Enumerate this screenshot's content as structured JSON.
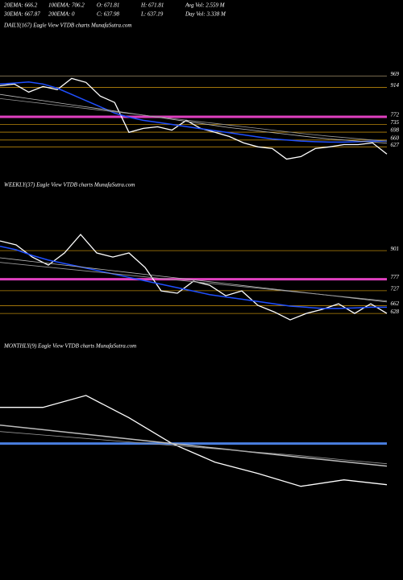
{
  "header": {
    "rows": [
      [
        "20EMA: 666.2",
        "100EMA: 706.2",
        "O: 671.81",
        "H: 671.81",
        "Avg Vol: 2.559 M"
      ],
      [
        "30EMA: 667.87",
        "200EMA: 0",
        "C: 637.98",
        "L: 637.19",
        "Day Vol: 3.338 M"
      ]
    ]
  },
  "chart_data": [
    {
      "type": "line",
      "title": "DAILY(167) Eagle View VTDB charts MunafaSutra.com",
      "categories": [
        null,
        null,
        null,
        null,
        null,
        null,
        null,
        null,
        null,
        null,
        null,
        null,
        null,
        null,
        null,
        null,
        null,
        null,
        null,
        null,
        null,
        null,
        null,
        null,
        null,
        null,
        null,
        null
      ],
      "ylim": [
        500,
        1180
      ],
      "yticks": [
        969,
        914,
        772,
        735,
        698,
        660,
        627
      ],
      "ytick_colors": [
        "#8a7a5a",
        "#b8860b",
        "#e040c0",
        "#b8860b",
        "#b8860b",
        "#b8860b",
        "#b8860b"
      ],
      "series": [
        {
          "color": "#ffffff",
          "values": [
            922,
            930,
            891,
            918,
            903,
            957,
            938,
            872,
            841,
            697,
            716,
            724,
            708,
            755,
            716,
            697,
            677,
            646,
            627,
            619,
            568,
            580,
            619,
            627,
            638,
            638,
            646,
            592
          ]
        },
        {
          "color": "#1f4fff",
          "values": [
            930,
            935,
            940,
            930,
            910,
            880,
            850,
            820,
            790,
            770,
            755,
            745,
            735,
            725,
            715,
            705,
            695,
            685,
            675,
            665,
            660,
            655,
            652,
            650,
            650,
            652,
            655,
            655
          ]
        },
        {
          "color": "#bbbbbb",
          "values": [
            880,
            870,
            860,
            850,
            840,
            830,
            820,
            810,
            800,
            790,
            780,
            770,
            760,
            750,
            740,
            730,
            720,
            712,
            704,
            696,
            688,
            680,
            672,
            665,
            660,
            655,
            650,
            645
          ]
        },
        {
          "color": "#999999",
          "values": [
            860,
            852,
            844,
            836,
            828,
            820,
            812,
            804,
            796,
            788,
            780,
            772,
            764,
            756,
            748,
            740,
            732,
            724,
            716,
            708,
            700,
            692,
            685,
            678,
            672,
            666,
            660,
            655
          ]
        }
      ]
    },
    {
      "type": "line",
      "title": "WEEKLY(37) Eagle View VTDB charts MunafaSutra.com",
      "categories": [
        null,
        null,
        null,
        null,
        null,
        null,
        null,
        null,
        null,
        null,
        null,
        null,
        null,
        null,
        null,
        null,
        null,
        null,
        null,
        null,
        null,
        null,
        null,
        null,
        null
      ],
      "ylim": [
        590,
        1150
      ],
      "yticks": [
        901,
        777,
        727,
        662,
        628
      ],
      "ytick_colors": [
        "#b8860b",
        "#e040c0",
        "#b8860b",
        "#b8860b",
        "#b8860b"
      ],
      "series": [
        {
          "color": "#ffffff",
          "values": [
            943,
            926,
            873,
            838,
            891,
            971,
            891,
            873,
            891,
            828,
            726,
            716,
            768,
            751,
            705,
            726,
            663,
            635,
            600,
            628,
            646,
            670,
            628,
            670,
            628
          ]
        },
        {
          "color": "#1f4fff",
          "values": [
            920,
            905,
            880,
            860,
            845,
            830,
            815,
            800,
            785,
            770,
            755,
            740,
            725,
            710,
            700,
            690,
            680,
            670,
            660,
            655,
            650,
            650,
            652,
            655,
            655
          ]
        },
        {
          "color": "#bbbbbb",
          "values": [
            870,
            862,
            854,
            846,
            838,
            830,
            822,
            814,
            806,
            798,
            790,
            782,
            774,
            766,
            758,
            750,
            742,
            734,
            726,
            718,
            710,
            702,
            694,
            686,
            678
          ]
        },
        {
          "color": "#999999",
          "values": [
            850,
            843,
            836,
            829,
            822,
            815,
            808,
            801,
            794,
            787,
            780,
            773,
            766,
            759,
            752,
            745,
            738,
            731,
            724,
            717,
            710,
            703,
            696,
            689,
            682
          ]
        }
      ]
    },
    {
      "type": "line",
      "title": "MONTHLY(9) Eagle View VTDB charts MunafaSutra.com",
      "categories": [
        null,
        null,
        null,
        null,
        null,
        null,
        null,
        null,
        null,
        null
      ],
      "ylim": [
        320,
        1230
      ],
      "reference_lines": [
        843
      ],
      "reference_colors": [
        "#4a7fe0"
      ],
      "series": [
        {
          "color": "#ffffff",
          "values": [
            1000,
            1000,
            1052,
            955,
            843,
            762,
            713,
            657,
            685,
            664
          ]
        },
        {
          "color": "#bbbbbb",
          "values": [
            923,
            903,
            883,
            863,
            843,
            823,
            803,
            783,
            764,
            745
          ]
        },
        {
          "color": "#999999",
          "values": [
            895,
            880,
            865,
            850,
            835,
            820,
            805,
            790,
            772,
            755
          ]
        }
      ]
    }
  ]
}
